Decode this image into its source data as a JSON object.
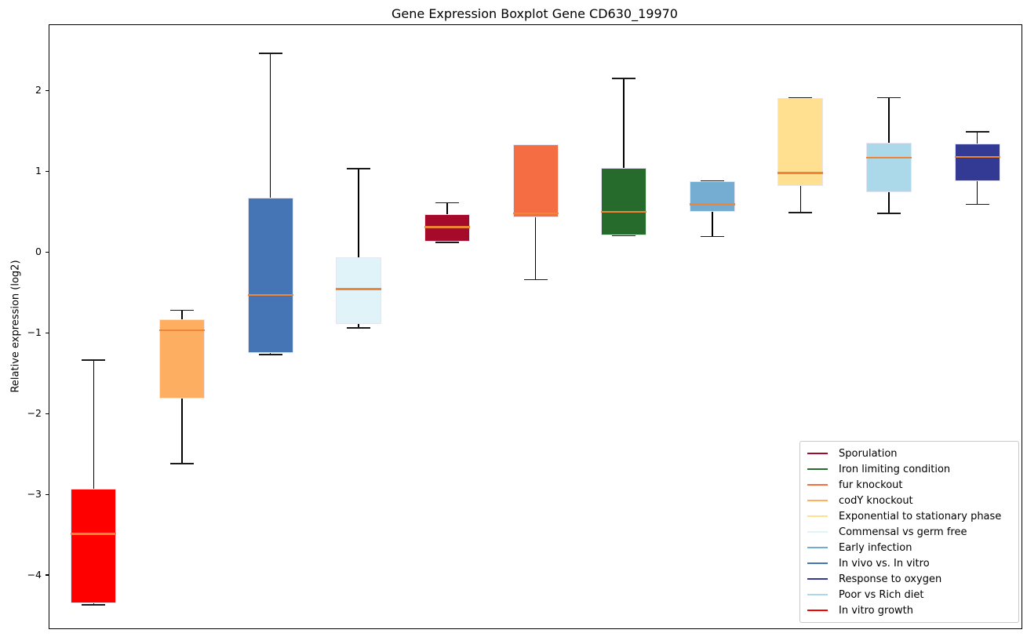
{
  "title": "Gene Expression Boxplot Gene CD630_19970",
  "y_axis": {
    "label": "Relative expression (log2)"
  },
  "chart_data": {
    "type": "boxplot",
    "title": "Gene Expression Boxplot Gene CD630_19970",
    "xlabel": "",
    "ylabel": "Relative expression (log2)",
    "ylim": [
      -4.66,
      2.81
    ],
    "grid": false,
    "legend_position": "lower right",
    "median_color": "#ef8536",
    "whisker_color": "#000000",
    "box_edge_color": "#e6e6f2",
    "yticks": [
      {
        "label": "2",
        "value": 2
      },
      {
        "label": "1",
        "value": 1
      },
      {
        "label": "0",
        "value": 0
      },
      {
        "label": "−1",
        "value": -1
      },
      {
        "label": "−2",
        "value": -2
      },
      {
        "label": "−3",
        "value": -3
      },
      {
        "label": "−4",
        "value": -4
      }
    ],
    "groups": [
      {
        "label": "In vitro growth",
        "color": "#ff0000",
        "whislo": -4.37,
        "q1": -4.35,
        "med": -3.49,
        "q3": -2.93,
        "whishi": -1.34
      },
      {
        "label": "codY knockout",
        "color": "#fdae61",
        "whislo": -2.62,
        "q1": -1.81,
        "med": -0.97,
        "q3": -0.83,
        "whishi": -0.72
      },
      {
        "label": "In vivo vs. In vitro",
        "color": "#4575b4",
        "whislo": -1.27,
        "q1": -1.25,
        "med": -0.53,
        "q3": 0.67,
        "whishi": 2.46
      },
      {
        "label": "Commensal vs germ free",
        "color": "#e0f3f8",
        "whislo": -0.94,
        "q1": -0.89,
        "med": -0.46,
        "q3": -0.07,
        "whishi": 1.03
      },
      {
        "label": "Sporulation",
        "color": "#a60a2b",
        "whislo": 0.12,
        "q1": 0.13,
        "med": 0.31,
        "q3": 0.47,
        "whishi": 0.61
      },
      {
        "label": "fur knockout",
        "color": "#f46d43",
        "whislo": -0.34,
        "q1": 0.43,
        "med": 0.48,
        "q3": 1.33,
        "whishi": 1.33
      },
      {
        "label": "Iron limiting condition",
        "color": "#266b2c",
        "whislo": 0.2,
        "q1": 0.21,
        "med": 0.5,
        "q3": 1.04,
        "whishi": 2.15
      },
      {
        "label": "Early infection",
        "color": "#74add1",
        "whislo": 0.19,
        "q1": 0.5,
        "med": 0.59,
        "q3": 0.88,
        "whishi": 0.88
      },
      {
        "label": "Exponential to stationary phase",
        "color": "#fee090",
        "whislo": 0.49,
        "q1": 0.82,
        "med": 0.98,
        "q3": 1.91,
        "whishi": 1.91
      },
      {
        "label": "Poor vs Rich diet",
        "color": "#abd9e9",
        "whislo": 0.48,
        "q1": 0.74,
        "med": 1.17,
        "q3": 1.35,
        "whishi": 1.91
      },
      {
        "label": "Response to oxygen",
        "color": "#333a94",
        "whislo": 0.59,
        "q1": 0.88,
        "med": 1.18,
        "q3": 1.34,
        "whishi": 1.49
      }
    ],
    "legend": [
      {
        "label": "Sporulation",
        "color": "#a60a2b"
      },
      {
        "label": "Iron limiting condition",
        "color": "#266b2c"
      },
      {
        "label": "fur knockout",
        "color": "#f46d43"
      },
      {
        "label": "codY knockout",
        "color": "#fdae61"
      },
      {
        "label": "Exponential to stationary phase",
        "color": "#fee090"
      },
      {
        "label": "Commensal vs germ free",
        "color": "#e0f3f8"
      },
      {
        "label": "Early infection",
        "color": "#74add1"
      },
      {
        "label": "In vivo vs. In vitro",
        "color": "#4575b4"
      },
      {
        "label": "Response to oxygen",
        "color": "#333a94"
      },
      {
        "label": "Poor vs Rich diet",
        "color": "#abd9e9"
      },
      {
        "label": "In vitro growth",
        "color": "#ff0000"
      }
    ]
  }
}
